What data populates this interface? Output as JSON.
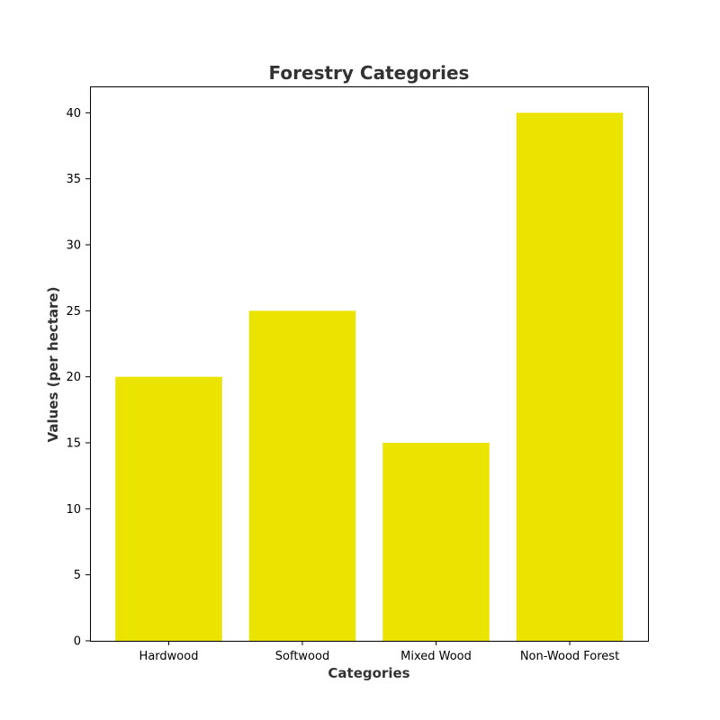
{
  "chart_data": {
    "type": "bar",
    "title": "Forestry Categories",
    "xlabel": "Categories",
    "ylabel": "Values (per hectare)",
    "categories": [
      "Hardwood",
      "Softwood",
      "Mixed Wood",
      "Non-Wood Forest"
    ],
    "values": [
      20,
      25,
      15,
      40
    ],
    "ylim": [
      0,
      42
    ],
    "yticks": [
      0,
      5,
      10,
      15,
      20,
      25,
      30,
      35,
      40
    ],
    "bar_color": "#ebe300",
    "grid": false,
    "legend": "none"
  }
}
